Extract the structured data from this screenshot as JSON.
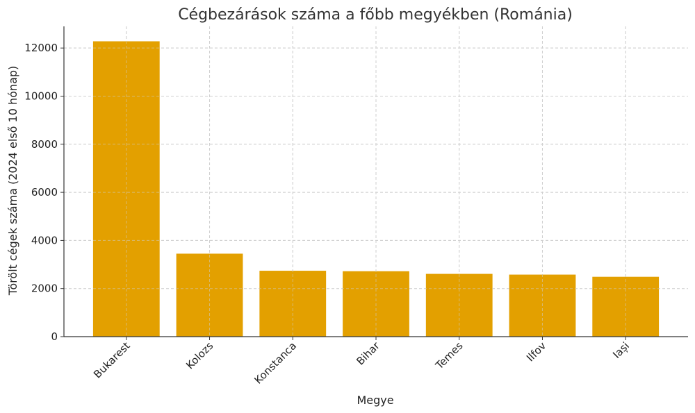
{
  "chart_data": {
    "type": "bar",
    "title": "Cégbezárások száma a főbb megyékben (Románia)",
    "xlabel": "Megye",
    "ylabel": "Törölt cégek száma (2024 első 10 hónap)",
    "categories": [
      "Bukarest",
      "Kolozs",
      "Konstanca",
      "Bihar",
      "Temes",
      "Ilfov",
      "Iași"
    ],
    "values": [
      12280,
      3450,
      2740,
      2720,
      2610,
      2580,
      2490
    ],
    "ylim": [
      0,
      12900
    ],
    "yticks": [
      0,
      2000,
      4000,
      6000,
      8000,
      10000,
      12000
    ],
    "bar_color": "#E3A000",
    "grid": true,
    "grid_style": "dashed"
  }
}
